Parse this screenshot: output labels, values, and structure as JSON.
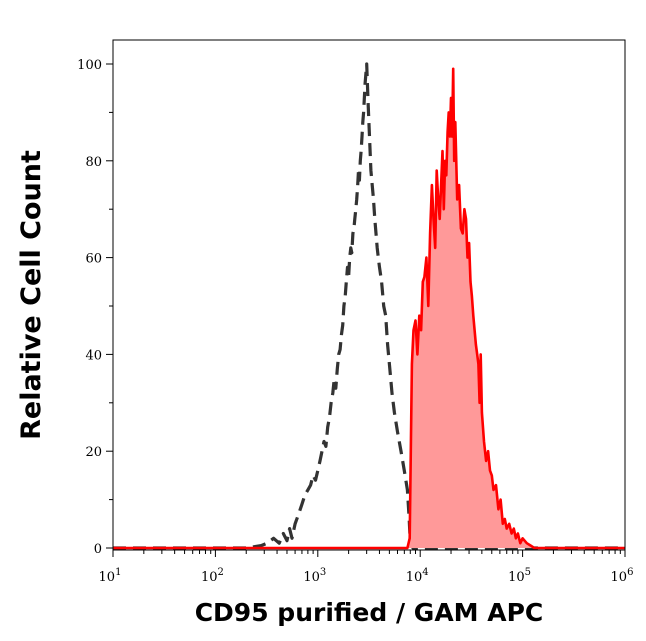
{
  "chart_data": {
    "type": "area",
    "title": "",
    "xlabel": "CD95 purified / GAM APC",
    "ylabel": "Relative Cell Count",
    "x_scale": "log",
    "xlim": [
      10,
      1000000
    ],
    "ylim": [
      0,
      100
    ],
    "x_ticks": [
      {
        "base": "10",
        "exp": "1"
      },
      {
        "base": "10",
        "exp": "2"
      },
      {
        "base": "10",
        "exp": "3"
      },
      {
        "base": "10",
        "exp": "4"
      },
      {
        "base": "10",
        "exp": "5"
      },
      {
        "base": "10",
        "exp": "6"
      }
    ],
    "y_ticks": [
      "0",
      "20",
      "40",
      "60",
      "80",
      "100"
    ],
    "grid": false,
    "legend": "none",
    "series": [
      {
        "style": "dashed-line",
        "color": "#333333",
        "x": [
          10,
          200,
          280,
          320,
          370,
          420,
          460,
          500,
          530,
          560,
          600,
          650,
          700,
          750,
          800,
          850,
          900,
          950,
          1000,
          1050,
          1100,
          1150,
          1200,
          1250,
          1300,
          1350,
          1400,
          1450,
          1500,
          1550,
          1600,
          1650,
          1700,
          1750,
          1800,
          1850,
          1900,
          1950,
          2000,
          2050,
          2100,
          2150,
          2200,
          2250,
          2300,
          2350,
          2400,
          2450,
          2500,
          2550,
          2600,
          2650,
          2700,
          2750,
          2800,
          2900,
          3000,
          3100,
          3200,
          3300,
          3400,
          3500,
          3600,
          3700,
          3800,
          3900,
          4000,
          4200,
          4400,
          4600,
          4800,
          5000,
          5300,
          5600,
          6000,
          6500,
          7000,
          7500,
          7800,
          8000,
          8500,
          1000000
        ],
        "y": [
          0,
          0,
          0.5,
          1,
          2,
          1,
          3,
          1.5,
          4,
          2,
          5,
          7,
          9,
          11,
          12,
          13,
          15,
          14,
          16,
          18,
          20,
          22,
          21,
          25,
          27,
          30,
          32,
          35,
          33,
          37,
          40,
          41,
          44,
          46,
          50,
          52,
          55,
          58,
          56,
          60,
          62,
          61,
          65,
          66,
          68,
          70,
          72,
          75,
          78,
          76,
          80,
          82,
          85,
          88,
          90,
          96,
          100,
          92,
          85,
          78,
          75,
          72,
          68,
          65,
          62,
          60,
          58,
          55,
          50,
          48,
          42,
          38,
          32,
          28,
          24,
          20,
          16,
          12,
          6,
          1,
          0,
          0
        ]
      },
      {
        "style": "filled-area",
        "color": "#ff0000",
        "fill": "#ff9999",
        "x": [
          10,
          7500,
          7900,
          8100,
          8300,
          8600,
          9000,
          9400,
          9800,
          10200,
          10600,
          11000,
          11500,
          12000,
          12500,
          13000,
          13500,
          14000,
          14500,
          15000,
          15500,
          16000,
          16500,
          17000,
          17500,
          18000,
          18500,
          19000,
          19500,
          20000,
          20500,
          21000,
          21500,
          22000,
          23000,
          24000,
          25000,
          26000,
          27000,
          28000,
          29000,
          30000,
          31000,
          32000,
          33000,
          34000,
          35000,
          36000,
          37000,
          38000,
          39000,
          40000,
          42000,
          44000,
          46000,
          48000,
          50000,
          52000,
          55000,
          58000,
          61000,
          64000,
          67000,
          70000,
          74000,
          78000,
          82000,
          86000,
          90000,
          95000,
          100000,
          110000,
          120000,
          130000,
          140000,
          1000000
        ],
        "y": [
          0,
          0,
          2,
          20,
          38,
          45,
          47,
          40,
          48,
          45,
          55,
          56,
          60,
          50,
          65,
          75,
          68,
          62,
          78,
          72,
          68,
          75,
          82,
          70,
          80,
          77,
          86,
          90,
          85,
          93,
          85,
          99,
          80,
          88,
          72,
          75,
          66,
          65,
          70,
          68,
          60,
          63,
          55,
          52,
          48,
          45,
          42,
          40,
          38,
          30,
          40,
          28,
          22,
          18,
          20,
          16,
          15,
          12,
          13,
          8,
          10,
          5,
          6,
          4,
          5,
          3,
          4,
          2,
          3,
          1,
          2,
          1,
          0.5,
          0,
          0,
          0
        ]
      }
    ]
  }
}
